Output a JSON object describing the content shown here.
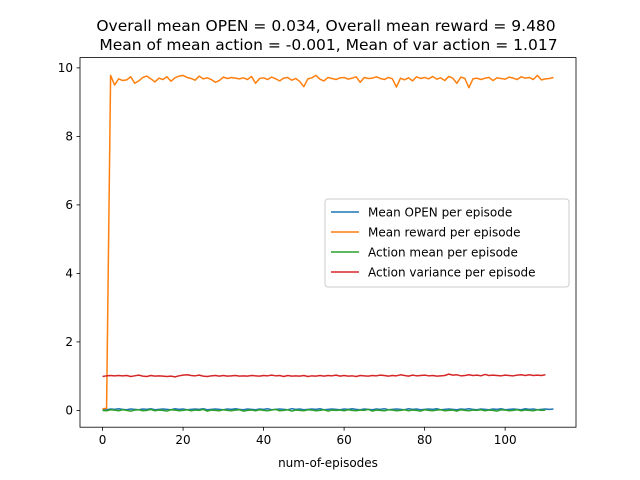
{
  "chart_data": {
    "type": "line",
    "title_lines": [
      "Overall mean OPEN = 0.034,  Overall mean reward = 9.480",
      " Mean of mean action = -0.001, Mean of var action = 1.017"
    ],
    "xlabel": "num-of-episodes",
    "ylabel": "",
    "xlim": [
      -5.6,
      117.6
    ],
    "ylim": [
      -0.49,
      10.3
    ],
    "xticks": [
      0,
      20,
      40,
      60,
      80,
      100
    ],
    "yticks": [
      0,
      2,
      4,
      6,
      8,
      10
    ],
    "grid": false,
    "legend_position": "center-right",
    "series": [
      {
        "name": "Mean OPEN per episode",
        "color": "#1f77b4",
        "x_start": 0,
        "values": [
          0.03,
          0.02,
          0.04,
          0.03,
          0.05,
          0.03,
          0.02,
          0.04,
          0.03,
          0.02,
          0.04,
          0.03,
          0.05,
          0.02,
          0.03,
          0.04,
          0.03,
          0.02,
          0.05,
          0.03,
          0.04,
          0.02,
          0.03,
          0.04,
          0.03,
          0.05,
          0.02,
          0.03,
          0.04,
          0.03,
          0.02,
          0.04,
          0.03,
          0.05,
          0.03,
          0.02,
          0.04,
          0.03,
          0.02,
          0.04,
          0.03,
          0.05,
          0.02,
          0.03,
          0.04,
          0.03,
          0.02,
          0.05,
          0.03,
          0.04,
          0.02,
          0.03,
          0.04,
          0.03,
          0.05,
          0.02,
          0.03,
          0.04,
          0.03,
          0.02,
          0.04,
          0.03,
          0.05,
          0.03,
          0.02,
          0.04,
          0.03,
          0.02,
          0.04,
          0.03,
          0.05,
          0.02,
          0.03,
          0.04,
          0.03,
          0.02,
          0.05,
          0.03,
          0.04,
          0.02,
          0.03,
          0.04,
          0.03,
          0.05,
          0.02,
          0.03,
          0.04,
          0.03,
          0.02,
          0.04,
          0.03,
          0.05,
          0.03,
          0.02,
          0.04,
          0.03,
          0.02,
          0.04,
          0.03,
          0.05,
          0.02,
          0.03,
          0.04,
          0.03,
          0.02,
          0.05,
          0.03,
          0.04,
          0.02,
          0.03,
          0.04,
          0.03,
          0.04
        ]
      },
      {
        "name": "Mean reward per episode",
        "color": "#ff7f0e",
        "x_start": 0,
        "values": [
          0.05,
          0.06,
          9.78,
          9.5,
          9.68,
          9.63,
          9.65,
          9.74,
          9.55,
          9.62,
          9.72,
          9.76,
          9.68,
          9.59,
          9.7,
          9.66,
          9.74,
          9.61,
          9.71,
          9.76,
          9.78,
          9.72,
          9.69,
          9.64,
          9.76,
          9.68,
          9.71,
          9.66,
          9.58,
          9.63,
          9.73,
          9.69,
          9.72,
          9.7,
          9.68,
          9.71,
          9.66,
          9.75,
          9.55,
          9.69,
          9.71,
          9.66,
          9.73,
          9.68,
          9.62,
          9.7,
          9.72,
          9.64,
          9.69,
          9.6,
          9.45,
          9.68,
          9.71,
          9.78,
          9.67,
          9.62,
          9.72,
          9.69,
          9.66,
          9.71,
          9.72,
          9.67,
          9.7,
          9.74,
          9.58,
          9.72,
          9.69,
          9.7,
          9.74,
          9.69,
          9.66,
          9.72,
          9.68,
          9.44,
          9.7,
          9.65,
          9.71,
          9.62,
          9.74,
          9.69,
          9.72,
          9.68,
          9.75,
          9.67,
          9.71,
          9.63,
          9.75,
          9.7,
          9.55,
          9.73,
          9.69,
          9.42,
          9.68,
          9.7,
          9.66,
          9.7,
          9.72,
          9.63,
          9.71,
          9.69,
          9.67,
          9.73,
          9.7,
          9.66,
          9.74,
          9.7,
          9.72,
          9.66,
          9.78,
          9.65,
          9.68,
          9.69,
          9.72
        ]
      },
      {
        "name": "Action mean per episode",
        "color": "#2ca02c",
        "x_start": 0,
        "values": [
          0.0,
          -0.01,
          0.02,
          0.01,
          -0.01,
          0.02,
          0.0,
          -0.02,
          0.01,
          0.02,
          -0.01,
          0.0,
          0.03,
          -0.01,
          0.01,
          0.0,
          -0.02,
          0.02,
          0.01,
          -0.01,
          0.0,
          0.02,
          -0.01,
          0.01,
          0.0,
          0.03,
          -0.02,
          0.01,
          0.0,
          -0.01,
          0.02,
          0.0,
          -0.01,
          0.01,
          0.02,
          -0.02,
          0.0,
          0.01,
          -0.01,
          0.02,
          0.0,
          -0.01,
          0.01,
          0.03,
          -0.01,
          0.0,
          0.02,
          -0.02,
          0.01,
          0.0,
          -0.01,
          0.02,
          0.01,
          -0.01,
          0.0,
          0.02,
          -0.02,
          0.01,
          0.0,
          0.01,
          -0.01,
          0.02,
          0.0,
          -0.01,
          0.01,
          0.0,
          0.03,
          -0.02,
          0.01,
          0.0,
          -0.01,
          0.02,
          0.01,
          -0.01,
          0.0,
          0.02,
          -0.01,
          0.01,
          0.0,
          -0.02,
          0.02,
          0.0,
          -0.01,
          0.01,
          0.02,
          -0.01,
          0.0,
          0.01,
          -0.02,
          0.02,
          0.0,
          -0.01,
          0.01,
          0.0,
          0.02,
          -0.01,
          0.01,
          0.0,
          -0.02,
          0.02,
          0.01,
          -0.01,
          0.0,
          0.02,
          -0.01,
          0.01,
          0.0,
          -0.01,
          0.02,
          0.0,
          0.01
        ]
      },
      {
        "name": "Action variance per episode",
        "color": "#d62728",
        "x_start": 0,
        "values": [
          0.99,
          1.01,
          1.02,
          1.01,
          1.02,
          1.01,
          1.02,
          0.99,
          1.01,
          1.03,
          1.0,
          0.99,
          1.02,
          1.0,
          1.01,
          1.0,
          0.99,
          1.0,
          0.98,
          1.01,
          1.03,
          1.04,
          1.02,
          1.01,
          1.03,
          1.0,
          0.99,
          1.01,
          1.02,
          1.0,
          1.02,
          1.0,
          1.01,
          1.02,
          1.0,
          1.01,
          1.0,
          1.02,
          1.01,
          1.0,
          1.02,
          1.01,
          1.03,
          1.01,
          1.02,
          0.99,
          1.02,
          1.0,
          1.01,
          1.0,
          1.02,
          0.99,
          1.01,
          1.0,
          1.02,
          1.0,
          1.02,
          1.01,
          1.03,
          1.0,
          1.02,
          1.0,
          1.01,
          0.99,
          1.02,
          1.01,
          1.0,
          1.02,
          1.01,
          1.03,
          1.02,
          1.0,
          1.02,
          1.01,
          1.04,
          1.02,
          1.0,
          1.03,
          1.01,
          1.02,
          1.03,
          1.01,
          1.02,
          1.0,
          1.01,
          1.02,
          1.06,
          1.03,
          1.04,
          1.01,
          1.02,
          1.04,
          1.02,
          1.03,
          1.01,
          1.05,
          1.02,
          1.03,
          1.02,
          1.01,
          1.03,
          1.02,
          1.01,
          1.03,
          1.04,
          1.02,
          1.04,
          1.02,
          1.03,
          1.02,
          1.04
        ]
      }
    ]
  }
}
